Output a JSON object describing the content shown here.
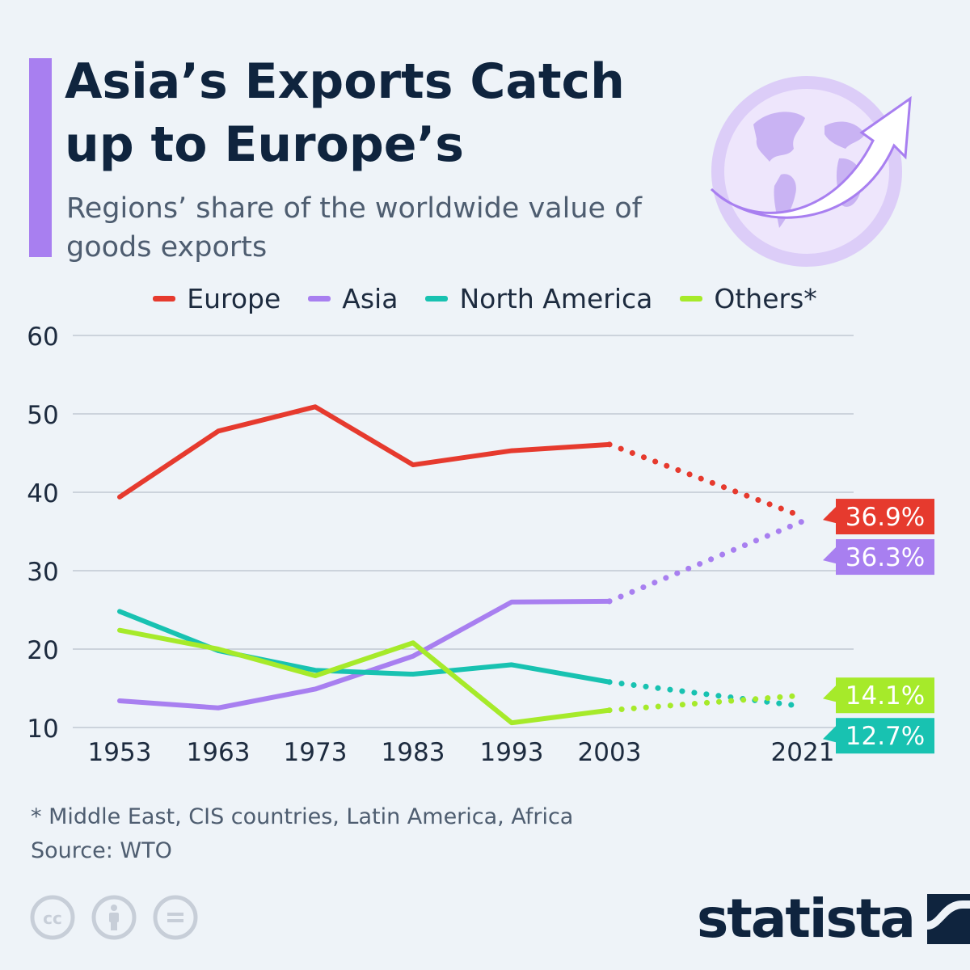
{
  "header": {
    "title": "Asia’s Exports Catch up to Europe’s",
    "subtitle": "Regions’ share of the worldwide value of goods exports"
  },
  "legend": [
    {
      "label": "Europe",
      "color": "#e63a2e"
    },
    {
      "label": "Asia",
      "color": "#a87ff0"
    },
    {
      "label": "North America",
      "color": "#18c2b1"
    },
    {
      "label": "Others*",
      "color": "#a6ea2a"
    }
  ],
  "chart_data": {
    "type": "line",
    "title": "Asia’s Exports Catch up to Europe’s",
    "subtitle": "Regions’ share of the worldwide value of goods exports",
    "x": [
      "1953",
      "1963",
      "1973",
      "1983",
      "1993",
      "2003",
      "2021"
    ],
    "ylim": [
      10,
      60
    ],
    "yticks": [
      10,
      20,
      30,
      40,
      50,
      60
    ],
    "grid": true,
    "legend_position": "top",
    "solid_until_index": 5,
    "dotted_segment": "2003-2021",
    "series": [
      {
        "name": "Europe",
        "color": "#e63a2e",
        "values": [
          39.4,
          47.8,
          50.9,
          43.5,
          45.3,
          46.1,
          36.9
        ],
        "end_label": "36.9%"
      },
      {
        "name": "Asia",
        "color": "#a87ff0",
        "values": [
          13.4,
          12.5,
          14.9,
          19.1,
          26.0,
          26.1,
          36.3
        ],
        "end_label": "36.3%"
      },
      {
        "name": "North America",
        "color": "#18c2b1",
        "values": [
          24.8,
          19.8,
          17.3,
          16.8,
          18.0,
          15.8,
          12.7
        ],
        "end_label": "12.7%"
      },
      {
        "name": "Others*",
        "color": "#a6ea2a",
        "values": [
          22.4,
          20.0,
          16.6,
          20.8,
          10.6,
          12.2,
          14.1
        ],
        "end_label": "14.1%"
      }
    ]
  },
  "footer": {
    "footnote": "* Middle East, CIS countries, Latin America, Africa",
    "source": "Source: WTO",
    "cc_icons": [
      "creative-commons-icon",
      "attribution-icon",
      "no-derivatives-icon"
    ],
    "brand": "statista"
  }
}
